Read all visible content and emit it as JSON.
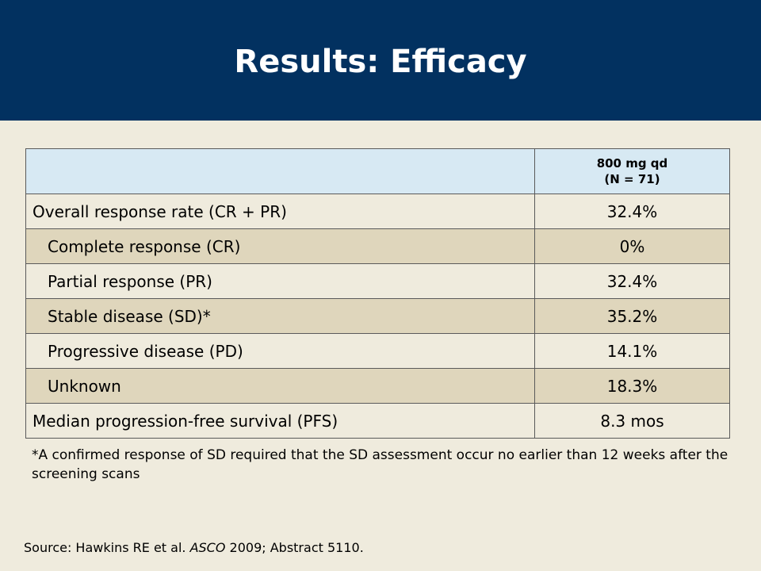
{
  "slide": {
    "title": "Results: Efficacy"
  },
  "table": {
    "header": {
      "col1": "",
      "col2_line1": "800 mg qd",
      "col2_line2": "(N = 71)"
    },
    "rows": [
      {
        "label": "Overall response rate (CR + PR)",
        "value": "32.4%"
      },
      {
        "label": "Complete response (CR)",
        "value": "0%"
      },
      {
        "label": "Partial response (PR)",
        "value": "32.4%"
      },
      {
        "label": "Stable disease (SD)*",
        "value": "35.2%"
      },
      {
        "label": "Progressive disease (PD)",
        "value": "14.1%"
      },
      {
        "label": "Unknown",
        "value": "18.3%"
      },
      {
        "label": "Median progression-free survival (PFS)",
        "value": "8.3 mos"
      }
    ]
  },
  "footnote": "*A confirmed response of SD required that the SD assessment occur no earlier than 12 weeks after the screening scans",
  "source": {
    "prefix": "Source: Hawkins RE et al. ",
    "journal": "ASCO",
    "suffix": " 2009; Abstract 5110."
  },
  "colors": {
    "header_bg": "#023160",
    "slide_bg": "#efebdd",
    "table_header_bg": "#d7e9f3",
    "shaded_row_bg": "#dfd6bc"
  }
}
